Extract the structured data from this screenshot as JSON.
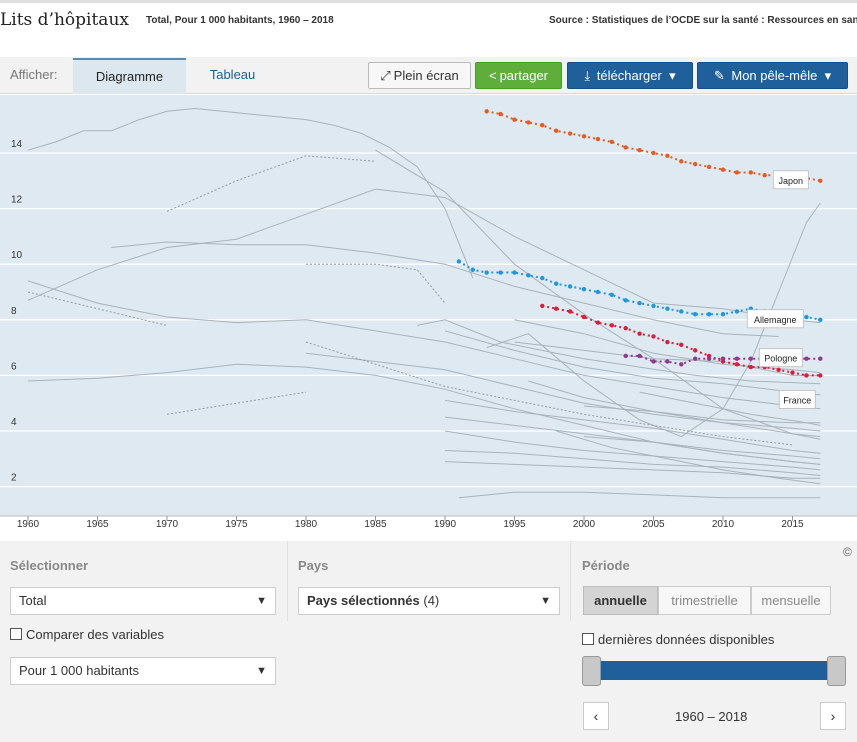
{
  "header": {
    "title": "Lits d’hôpitaux",
    "subtitle": "Total, Pour 1 000 habitants, 1960 – 2018",
    "source": "Source : Statistiques de l’OCDE sur la santé : Ressources en santé"
  },
  "toolbar": {
    "afficher_label": "Afficher:",
    "tabs": [
      "Diagramme",
      "Tableau"
    ],
    "full_label": "Plein écran",
    "share_label": "partager",
    "download_label": "télécharger",
    "pm_label": "Mon pêle-mêle"
  },
  "colors": {
    "japon": "#e15d25",
    "allemagne": "#1f97d8",
    "france": "#d4213c",
    "pologne": "#8e3a8e",
    "background_series": "#a8b3bc",
    "plot_bg": "#dfe9f1"
  },
  "chart_data": {
    "type": "line",
    "title": "Lits d’hôpitaux",
    "xlim": [
      1959.5,
      2019
    ],
    "ylim": [
      0.8,
      16.2
    ],
    "x_ticks": [
      1960,
      1965,
      1970,
      1975,
      1980,
      1985,
      1990,
      1995,
      2000,
      2005,
      2010,
      2015
    ],
    "y_ticks": [
      2,
      4,
      6,
      8,
      10,
      12,
      14
    ],
    "highlighted_series": [
      {
        "name": "Japon",
        "color": "#e15d25",
        "x": [
          1993,
          1994,
          1995,
          1996,
          1997,
          1998,
          1999,
          2000,
          2001,
          2002,
          2003,
          2004,
          2005,
          2006,
          2007,
          2008,
          2009,
          2010,
          2011,
          2012,
          2013,
          2014,
          2015,
          2016,
          2017
        ],
        "y": [
          15.5,
          15.4,
          15.2,
          15.1,
          15.0,
          14.8,
          14.7,
          14.6,
          14.5,
          14.4,
          14.2,
          14.1,
          14.0,
          13.9,
          13.7,
          13.6,
          13.5,
          13.4,
          13.3,
          13.3,
          13.2,
          13.2,
          13.1,
          13.1,
          13.0
        ]
      },
      {
        "name": "Allemagne",
        "color": "#1f97d8",
        "x": [
          1991,
          1992,
          1993,
          1994,
          1995,
          1996,
          1997,
          1998,
          1999,
          2000,
          2001,
          2002,
          2003,
          2004,
          2005,
          2006,
          2007,
          2008,
          2009,
          2010,
          2011,
          2012,
          2013,
          2014,
          2015,
          2016,
          2017
        ],
        "y": [
          10.1,
          9.8,
          9.7,
          9.7,
          9.7,
          9.6,
          9.5,
          9.3,
          9.2,
          9.1,
          9.0,
          8.9,
          8.7,
          8.6,
          8.5,
          8.4,
          8.3,
          8.2,
          8.2,
          8.2,
          8.3,
          8.4,
          8.3,
          8.2,
          8.1,
          8.1,
          8.0
        ]
      },
      {
        "name": "France",
        "color": "#d4213c",
        "x": [
          1997,
          1998,
          1999,
          2000,
          2001,
          2002,
          2003,
          2004,
          2005,
          2006,
          2007,
          2008,
          2009,
          2010,
          2011,
          2012,
          2013,
          2014,
          2015,
          2016,
          2017
        ],
        "y": [
          8.5,
          8.4,
          8.3,
          8.1,
          7.9,
          7.8,
          7.7,
          7.5,
          7.4,
          7.2,
          7.1,
          6.9,
          6.7,
          6.5,
          6.4,
          6.3,
          6.3,
          6.2,
          6.1,
          6.0,
          6.0
        ]
      },
      {
        "name": "Pologne",
        "color": "#8e3a8e",
        "x": [
          2003,
          2004,
          2005,
          2006,
          2007,
          2008,
          2009,
          2010,
          2011,
          2012,
          2013,
          2014,
          2015,
          2016,
          2017
        ],
        "y": [
          6.7,
          6.7,
          6.5,
          6.5,
          6.4,
          6.6,
          6.6,
          6.6,
          6.6,
          6.6,
          6.6,
          6.6,
          6.6,
          6.6,
          6.6
        ]
      }
    ],
    "labels": [
      "Japon",
      "Allemagne",
      "Pologne",
      "France"
    ],
    "background_series": [
      {
        "x": [
          1960,
          1962,
          1964,
          1966,
          1968,
          1970,
          1972,
          1974,
          1976,
          1978,
          1980,
          1982,
          1984,
          1986,
          1988,
          1990,
          1992
        ],
        "y": [
          14.1,
          14.4,
          14.8,
          14.8,
          15.2,
          15.5,
          15.6,
          15.5,
          15.4,
          15.3,
          15.2,
          15.0,
          14.7,
          14.2,
          13.5,
          12.0,
          9.5
        ]
      },
      {
        "x": [
          1966,
          1970,
          1975,
          1980,
          1985,
          1990,
          1995,
          2000,
          2005,
          2010,
          2014
        ],
        "y": [
          10.6,
          10.8,
          10.7,
          10.7,
          10.4,
          10.0,
          9.2,
          8.6,
          8.0,
          7.5,
          7.4
        ]
      },
      {
        "x": [
          1960,
          1965,
          1970,
          1975,
          1980,
          1985,
          1990,
          1995,
          2000,
          2005,
          2010,
          2015,
          2017
        ],
        "y": [
          8.7,
          9.8,
          10.6,
          10.9,
          11.8,
          12.7,
          12.4,
          11.0,
          9.8,
          8.6,
          8.4,
          8.0,
          7.9
        ]
      },
      {
        "x": [
          1960,
          1965,
          1970,
          1975,
          1980,
          1985,
          1990,
          1995,
          2000,
          2005,
          2010,
          2015,
          2017
        ],
        "y": [
          9.4,
          8.6,
          8.1,
          7.9,
          8.0,
          7.6,
          7.2,
          6.6,
          6.0,
          5.6,
          5.2,
          4.9,
          4.8
        ]
      },
      {
        "x": [
          1960,
          1965,
          1970,
          1975,
          1980,
          1985,
          1990,
          1995,
          2000,
          2005,
          2010,
          2015,
          2017
        ],
        "y": [
          5.8,
          5.9,
          6.1,
          6.4,
          6.3,
          6.0,
          5.5,
          4.8,
          4.2,
          3.6,
          3.2,
          2.9,
          2.8
        ]
      },
      {
        "x": [
          1980,
          1985,
          1990,
          1995,
          2000,
          2005,
          2010,
          2015,
          2017
        ],
        "y": [
          6.8,
          6.5,
          6.2,
          5.6,
          5.0,
          4.6,
          4.3,
          3.9,
          3.8
        ]
      },
      {
        "x": [
          1985,
          1990,
          1995,
          2000,
          2005,
          2010,
          2015,
          2017
        ],
        "y": [
          14.1,
          12.6,
          10.0,
          8.2,
          6.6,
          4.8,
          3.9,
          3.7
        ]
      },
      {
        "x": [
          1988,
          1990,
          1992,
          1994,
          1996,
          1998,
          2000,
          2004,
          2008,
          2012,
          2017
        ],
        "y": [
          7.8,
          8.0,
          7.6,
          7.2,
          7.0,
          6.8,
          6.6,
          6.3,
          6.0,
          5.8,
          5.7
        ]
      },
      {
        "x": [
          1990,
          1995,
          2000,
          2005,
          2010,
          2015,
          2017
        ],
        "y": [
          7.6,
          6.9,
          6.3,
          5.9,
          5.7,
          5.4,
          5.3
        ]
      },
      {
        "x": [
          1990,
          1995,
          2000,
          2005,
          2010,
          2015,
          2017
        ],
        "y": [
          5.1,
          4.7,
          4.4,
          4.1,
          3.7,
          3.3,
          3.2
        ]
      },
      {
        "x": [
          1990,
          1995,
          2000,
          2005,
          2010,
          2015,
          2017
        ],
        "y": [
          4.5,
          4.2,
          3.9,
          3.6,
          3.2,
          2.9,
          2.8
        ]
      },
      {
        "x": [
          1990,
          1995,
          2000,
          2005,
          2010,
          2015,
          2017
        ],
        "y": [
          4.0,
          3.6,
          3.3,
          3.1,
          2.9,
          2.7,
          2.6
        ]
      },
      {
        "x": [
          1990,
          1995,
          2000,
          2005,
          2010,
          2015,
          2017
        ],
        "y": [
          3.3,
          3.2,
          3.0,
          2.8,
          2.7,
          2.5,
          2.4
        ]
      },
      {
        "x": [
          1990,
          1995,
          2000,
          2005,
          2010,
          2015,
          2017
        ],
        "y": [
          2.9,
          2.8,
          2.7,
          2.6,
          2.5,
          2.3,
          2.3
        ]
      },
      {
        "x": [
          1991,
          1995,
          2000,
          2005,
          2010,
          2015,
          2017
        ],
        "y": [
          1.6,
          1.8,
          1.8,
          1.7,
          1.6,
          1.6,
          1.6
        ]
      },
      {
        "x": [
          1993,
          1996,
          2000,
          2004,
          2007,
          2010,
          2012,
          2014,
          2016,
          2017
        ],
        "y": [
          7.0,
          7.5,
          5.8,
          4.4,
          3.8,
          4.8,
          6.5,
          9.0,
          11.5,
          12.2
        ]
      },
      {
        "x": [
          1995,
          2000,
          2005,
          2010,
          2015,
          2017
        ],
        "y": [
          8.0,
          7.5,
          6.8,
          6.4,
          6.2,
          6.1
        ]
      },
      {
        "x": [
          1995,
          2000,
          2005,
          2010,
          2015,
          2017
        ],
        "y": [
          7.2,
          6.9,
          6.6,
          6.5,
          6.0,
          6.0
        ]
      },
      {
        "x": [
          1996,
          2000,
          2005,
          2010,
          2015,
          2017
        ],
        "y": [
          5.8,
          5.2,
          4.7,
          4.3,
          4.1,
          4.0
        ]
      },
      {
        "x": [
          1998,
          2002,
          2006,
          2010,
          2014,
          2017
        ],
        "y": [
          4.0,
          3.4,
          3.0,
          2.6,
          2.3,
          2.1
        ]
      },
      {
        "x": [
          2000,
          2005,
          2010,
          2015,
          2017
        ],
        "y": [
          4.9,
          4.7,
          4.4,
          4.3,
          4.3
        ]
      },
      {
        "x": [
          2000,
          2005,
          2010,
          2015,
          2017
        ],
        "y": [
          3.8,
          3.6,
          3.3,
          3.1,
          3.0
        ]
      },
      {
        "x": [
          2004,
          2008,
          2012,
          2016,
          2017
        ],
        "y": [
          5.4,
          5.0,
          4.6,
          4.3,
          4.2
        ]
      }
    ],
    "dotted_series": [
      {
        "x": [
          1970,
          1975,
          1980,
          1985
        ],
        "y": [
          11.9,
          13.0,
          13.9,
          13.7
        ]
      },
      {
        "x": [
          1980,
          1985,
          1988,
          1990
        ],
        "y": [
          10.0,
          10.0,
          9.8,
          8.6
        ]
      },
      {
        "x": [
          1960,
          1970
        ],
        "y": [
          9.0,
          7.8
        ]
      },
      {
        "x": [
          1980,
          1990,
          2000,
          2010,
          2015
        ],
        "y": [
          7.2,
          5.6,
          4.6,
          3.8,
          3.5
        ]
      },
      {
        "x": [
          1970,
          1980
        ],
        "y": [
          4.6,
          5.4
        ]
      }
    ]
  },
  "filters": {
    "selectionner_label": "Sélectionner",
    "variable_value": "Total",
    "comparer_label": "Comparer des variables",
    "unit_value": "Pour 1 000 habitants",
    "pays_label": "Pays",
    "pays_value": "Pays sélectionnés",
    "pays_count": "(4)",
    "periode_label": "Période",
    "periods": [
      "annuelle",
      "trimestrielle",
      "mensuelle"
    ],
    "latest_label": "dernières données disponibles",
    "range_label": "1960 – 2018",
    "prev_label": "‹",
    "next_label": "›",
    "copyright": "©"
  }
}
